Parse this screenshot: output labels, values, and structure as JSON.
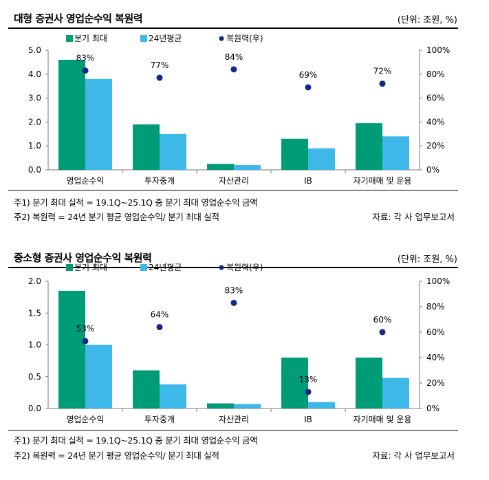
{
  "colors": {
    "max": "#009b77",
    "avg": "#3db8e8",
    "ratio": "#0e2a85"
  },
  "legend": {
    "max": "분기 최대",
    "avg": "24년평균",
    "ratio": "복원력(우)"
  },
  "panels": [
    {
      "title": "대형 증권사 영업순수익 복원력",
      "unit": "(단위: 조원, %)",
      "note1": "주1) 분기 최대 실적 = 19.1Q~25.1Q 중 분기 최대 영업순수익 금액",
      "note2": "주2) 복원력 = 24년 분기 평균 영업순수익/ 분기 최대 실적",
      "source": "자료: 각 사 업무보고서"
    },
    {
      "title": "중소형 증권사 영업순수익 복원력",
      "unit": "(단위: 조원, %)",
      "note1": "주1) 분기 최대 실적 = 19.1Q~25.1Q 중 분기 최대 영업순수익 금액",
      "note2": "주2) 복원력 = 24년 분기 평균 영업순수익/ 분기 최대 실적",
      "source": "자료: 각 사 업무보고서"
    }
  ],
  "chart_data": [
    {
      "type": "bar",
      "categories": [
        "영업순수익",
        "투자중개",
        "자산관리",
        "IB",
        "자기매매 및 운용"
      ],
      "series": [
        {
          "name": "분기 최대",
          "values": [
            4.6,
            1.9,
            0.25,
            1.3,
            1.95
          ]
        },
        {
          "name": "24년평균",
          "values": [
            3.8,
            1.5,
            0.2,
            0.9,
            1.4
          ]
        },
        {
          "name": "복원력(우)",
          "axis": "right",
          "values": [
            83,
            77,
            84,
            69,
            72
          ]
        }
      ],
      "data_labels": [
        "83%",
        "77%",
        "84%",
        "69%",
        "72%"
      ],
      "y_ticks": [
        "0.0",
        "1.0",
        "2.0",
        "3.0",
        "4.0",
        "5.0"
      ],
      "ylim": [
        0,
        5
      ],
      "y2_ticks": [
        "0%",
        "20%",
        "40%",
        "60%",
        "80%",
        "100%"
      ],
      "y2lim": [
        0,
        100
      ],
      "legend_position": "top-left",
      "grid": false
    },
    {
      "type": "bar",
      "categories": [
        "영업순수익",
        "투자중개",
        "자산관리",
        "IB",
        "자기매매 및 운용"
      ],
      "series": [
        {
          "name": "분기 최대",
          "values": [
            1.85,
            0.6,
            0.08,
            0.8,
            0.8
          ]
        },
        {
          "name": "24년평균",
          "values": [
            1.0,
            0.38,
            0.07,
            0.1,
            0.48
          ]
        },
        {
          "name": "복원력(우)",
          "axis": "right",
          "values": [
            53,
            64,
            83,
            13,
            60
          ]
        }
      ],
      "data_labels": [
        "53%",
        "64%",
        "83%",
        "13%",
        "60%"
      ],
      "y_ticks": [
        "0.0",
        "0.5",
        "1.0",
        "1.5",
        "2.0"
      ],
      "ylim": [
        0,
        2
      ],
      "y2_ticks": [
        "0%",
        "20%",
        "40%",
        "60%",
        "80%",
        "100%"
      ],
      "y2lim": [
        0,
        100
      ],
      "legend_position": "top-left",
      "grid": false
    }
  ]
}
